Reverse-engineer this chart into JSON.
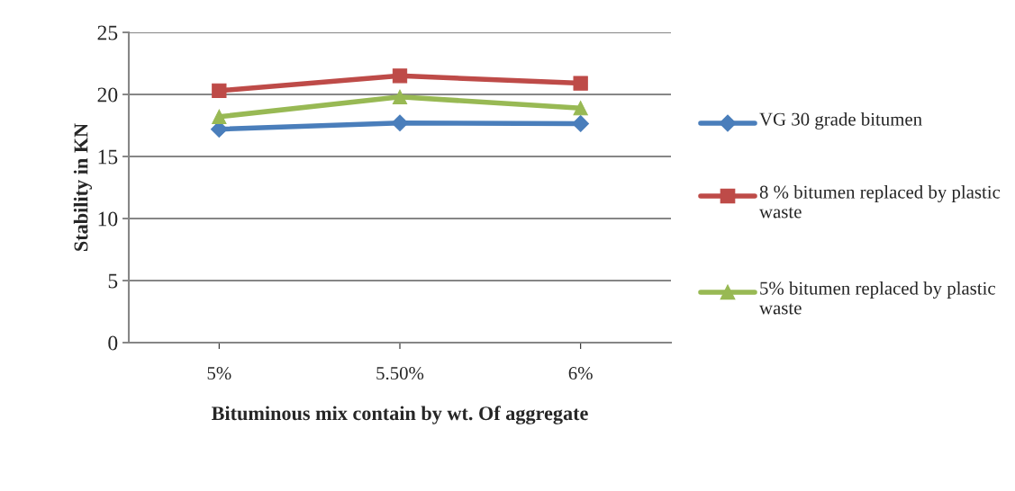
{
  "chart_data": {
    "type": "line",
    "xlabel": "Bituminous mix contain by wt. Of aggregate",
    "ylabel": "Stability in KN",
    "categories": [
      "5%",
      "5.50%",
      "6%"
    ],
    "series": [
      {
        "name": "VG 30 grade bitumen",
        "color": "#4a7ebb",
        "marker": "diamond",
        "values": [
          17.2,
          17.7,
          17.65
        ]
      },
      {
        "name": "8 % bitumen replaced by plastic waste",
        "color": "#be4b48",
        "marker": "square",
        "values": [
          20.3,
          21.5,
          20.9
        ]
      },
      {
        "name": "5% bitumen replaced by plastic waste",
        "color": "#98b954",
        "marker": "triangle",
        "values": [
          18.2,
          19.8,
          18.9
        ]
      }
    ],
    "ylim": [
      0,
      25
    ],
    "yticks": [
      0,
      5,
      10,
      15,
      20,
      25
    ],
    "grid": "y",
    "legend": "right"
  }
}
